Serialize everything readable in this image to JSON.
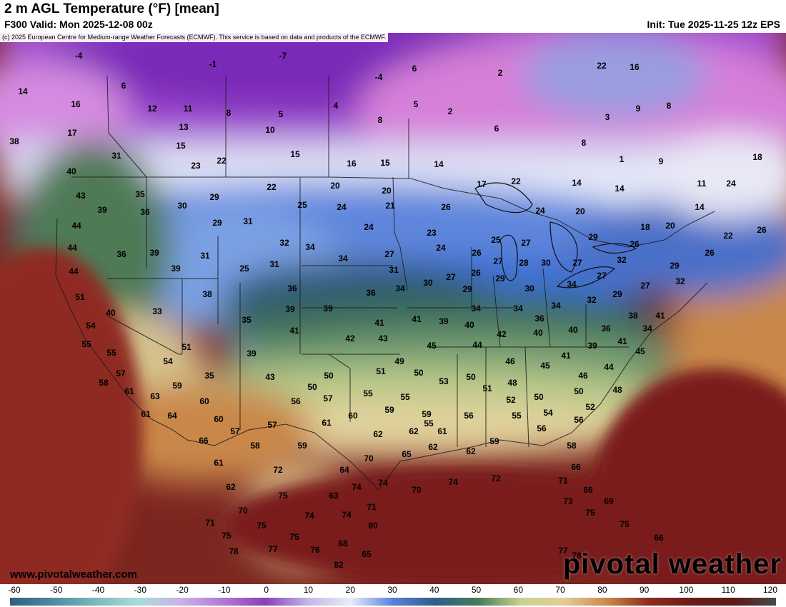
{
  "header": {
    "title": "2 m AGL Temperature (°F) [mean]",
    "valid": "F300 Valid: Mon 2025-12-08 00z",
    "init": "Init: Tue 2025-11-25 12z EPS",
    "copyright": "(c) 2025 European Centre for Medium-range Weather Forecasts (ECMWF). This service is based on data and products of the ECMWF."
  },
  "footer": {
    "website": "www.pivotalweather.com",
    "brand": "pivotal weather"
  },
  "colorbar": {
    "ticks": [
      "-60",
      "-50",
      "-40",
      "-30",
      "-20",
      "-10",
      "0",
      "10",
      "20",
      "30",
      "40",
      "50",
      "60",
      "70",
      "80",
      "90",
      "100",
      "110",
      "120"
    ],
    "colors": [
      "#2e5f7e",
      "#4f8aa0",
      "#7ab7be",
      "#a9dcd6",
      "#c9b3e6",
      "#b07ad4",
      "#8a3fb8",
      "#c5b5e8",
      "#e8eef8",
      "#5b7fd9",
      "#2f5f8a",
      "#4a7a5a",
      "#c8d290",
      "#e2cd98",
      "#c98d4b",
      "#8e2a1f",
      "#6b1c18",
      "#5a1a16",
      "#4a4a4a"
    ]
  },
  "map": {
    "values": [
      {
        "v": "-4"
      },
      {
        "v": "-7"
      },
      {
        "v": "-1"
      },
      {
        "v": "-4"
      },
      {
        "v": "6"
      },
      {
        "v": "2"
      },
      {
        "v": "22"
      },
      {
        "v": "16"
      },
      {
        "v": "14"
      },
      {
        "v": "6"
      },
      {
        "v": "16"
      },
      {
        "v": "12"
      },
      {
        "v": "11"
      },
      {
        "v": "8"
      },
      {
        "v": "5"
      },
      {
        "v": "4"
      },
      {
        "v": "5"
      },
      {
        "v": "2"
      },
      {
        "v": "9"
      },
      {
        "v": "8"
      },
      {
        "v": "3"
      },
      {
        "v": "17"
      },
      {
        "v": "13"
      },
      {
        "v": "10"
      },
      {
        "v": "8"
      },
      {
        "v": "6"
      },
      {
        "v": "8"
      },
      {
        "v": "38"
      },
      {
        "v": "15"
      },
      {
        "v": "15"
      },
      {
        "v": "31"
      },
      {
        "v": "23"
      },
      {
        "v": "22"
      },
      {
        "v": "16"
      },
      {
        "v": "15"
      },
      {
        "v": "14"
      },
      {
        "v": "1"
      },
      {
        "v": "9"
      },
      {
        "v": "18"
      },
      {
        "v": "40"
      },
      {
        "v": "43"
      },
      {
        "v": "35"
      },
      {
        "v": "29"
      },
      {
        "v": "22"
      },
      {
        "v": "20"
      },
      {
        "v": "20"
      },
      {
        "v": "17"
      },
      {
        "v": "22"
      },
      {
        "v": "14"
      },
      {
        "v": "14"
      },
      {
        "v": "11"
      },
      {
        "v": "24"
      },
      {
        "v": "39"
      },
      {
        "v": "36"
      },
      {
        "v": "30"
      },
      {
        "v": "25"
      },
      {
        "v": "24"
      },
      {
        "v": "21"
      },
      {
        "v": "26"
      },
      {
        "v": "24"
      },
      {
        "v": "20"
      },
      {
        "v": "14"
      },
      {
        "v": "44"
      },
      {
        "v": "29"
      },
      {
        "v": "31"
      },
      {
        "v": "24"
      },
      {
        "v": "23"
      },
      {
        "v": "18"
      },
      {
        "v": "20"
      },
      {
        "v": "22"
      },
      {
        "v": "26"
      },
      {
        "v": "44"
      },
      {
        "v": "36"
      },
      {
        "v": "39"
      },
      {
        "v": "32"
      },
      {
        "v": "34"
      },
      {
        "v": "25"
      },
      {
        "v": "27"
      },
      {
        "v": "29"
      },
      {
        "v": "26"
      },
      {
        "v": "31"
      },
      {
        "v": "25"
      },
      {
        "v": "31"
      },
      {
        "v": "34"
      },
      {
        "v": "27"
      },
      {
        "v": "24"
      },
      {
        "v": "26"
      },
      {
        "v": "27"
      },
      {
        "v": "28"
      },
      {
        "v": "32"
      },
      {
        "v": "26"
      },
      {
        "v": "44"
      },
      {
        "v": "39"
      },
      {
        "v": "31"
      },
      {
        "v": "27"
      },
      {
        "v": "26"
      },
      {
        "v": "29"
      },
      {
        "v": "30"
      },
      {
        "v": "27"
      },
      {
        "v": "27"
      },
      {
        "v": "29"
      },
      {
        "v": "51"
      },
      {
        "v": "38"
      },
      {
        "v": "36"
      },
      {
        "v": "36"
      },
      {
        "v": "34"
      },
      {
        "v": "30"
      },
      {
        "v": "29"
      },
      {
        "v": "30"
      },
      {
        "v": "34"
      },
      {
        "v": "29"
      },
      {
        "v": "27"
      },
      {
        "v": "32"
      },
      {
        "v": "40"
      },
      {
        "v": "33"
      },
      {
        "v": "39"
      },
      {
        "v": "39"
      },
      {
        "v": "34"
      },
      {
        "v": "34"
      },
      {
        "v": "34"
      },
      {
        "v": "32"
      },
      {
        "v": "38"
      },
      {
        "v": "41"
      },
      {
        "v": "54"
      },
      {
        "v": "35"
      },
      {
        "v": "41"
      },
      {
        "v": "41"
      },
      {
        "v": "41"
      },
      {
        "v": "39"
      },
      {
        "v": "40"
      },
      {
        "v": "36"
      },
      {
        "v": "36"
      },
      {
        "v": "34"
      },
      {
        "v": "55"
      },
      {
        "v": "42"
      },
      {
        "v": "43"
      },
      {
        "v": "42"
      },
      {
        "v": "40"
      },
      {
        "v": "40"
      },
      {
        "v": "41"
      },
      {
        "v": "55"
      },
      {
        "v": "51"
      },
      {
        "v": "39"
      },
      {
        "v": "45"
      },
      {
        "v": "44"
      },
      {
        "v": "39"
      },
      {
        "v": "45"
      },
      {
        "v": "54"
      },
      {
        "v": "49"
      },
      {
        "v": "46"
      },
      {
        "v": "41"
      },
      {
        "v": "45"
      },
      {
        "v": "44"
      },
      {
        "v": "57"
      },
      {
        "v": "35"
      },
      {
        "v": "43"
      },
      {
        "v": "50"
      },
      {
        "v": "51"
      },
      {
        "v": "50"
      },
      {
        "v": "53"
      },
      {
        "v": "50"
      },
      {
        "v": "48"
      },
      {
        "v": "46"
      },
      {
        "v": "58"
      },
      {
        "v": "59"
      },
      {
        "v": "50"
      },
      {
        "v": "51"
      },
      {
        "v": "50"
      },
      {
        "v": "50"
      },
      {
        "v": "48"
      },
      {
        "v": "61"
      },
      {
        "v": "63"
      },
      {
        "v": "60"
      },
      {
        "v": "56"
      },
      {
        "v": "57"
      },
      {
        "v": "55"
      },
      {
        "v": "55"
      },
      {
        "v": "55"
      },
      {
        "v": "52"
      },
      {
        "v": "52"
      },
      {
        "v": "61"
      },
      {
        "v": "64"
      },
      {
        "v": "60"
      },
      {
        "v": "60"
      },
      {
        "v": "59"
      },
      {
        "v": "59"
      },
      {
        "v": "56"
      },
      {
        "v": "55"
      },
      {
        "v": "54"
      },
      {
        "v": "56"
      },
      {
        "v": "57"
      },
      {
        "v": "57"
      },
      {
        "v": "61"
      },
      {
        "v": "62"
      },
      {
        "v": "62"
      },
      {
        "v": "61"
      },
      {
        "v": "56"
      },
      {
        "v": "66"
      },
      {
        "v": "58"
      },
      {
        "v": "59"
      },
      {
        "v": "65"
      },
      {
        "v": "62"
      },
      {
        "v": "62"
      },
      {
        "v": "59"
      },
      {
        "v": "58"
      },
      {
        "v": "61"
      },
      {
        "v": "72"
      },
      {
        "v": "64"
      },
      {
        "v": "70"
      },
      {
        "v": "66"
      },
      {
        "v": "62"
      },
      {
        "v": "74"
      },
      {
        "v": "74"
      },
      {
        "v": "70"
      },
      {
        "v": "74"
      },
      {
        "v": "72"
      },
      {
        "v": "71"
      },
      {
        "v": "66"
      },
      {
        "v": "70"
      },
      {
        "v": "75"
      },
      {
        "v": "63"
      },
      {
        "v": "73"
      },
      {
        "v": "69"
      },
      {
        "v": "74"
      },
      {
        "v": "74"
      },
      {
        "v": "71"
      },
      {
        "v": "75"
      },
      {
        "v": "71"
      },
      {
        "v": "75"
      },
      {
        "v": "80"
      },
      {
        "v": "75"
      },
      {
        "v": "75"
      },
      {
        "v": "75"
      },
      {
        "v": "66"
      },
      {
        "v": "78"
      },
      {
        "v": "77"
      },
      {
        "v": "76"
      },
      {
        "v": "68"
      },
      {
        "v": "65"
      },
      {
        "v": "77"
      },
      {
        "v": "78"
      },
      {
        "v": "82"
      },
      {
        "v": "68"
      }
    ]
  }
}
